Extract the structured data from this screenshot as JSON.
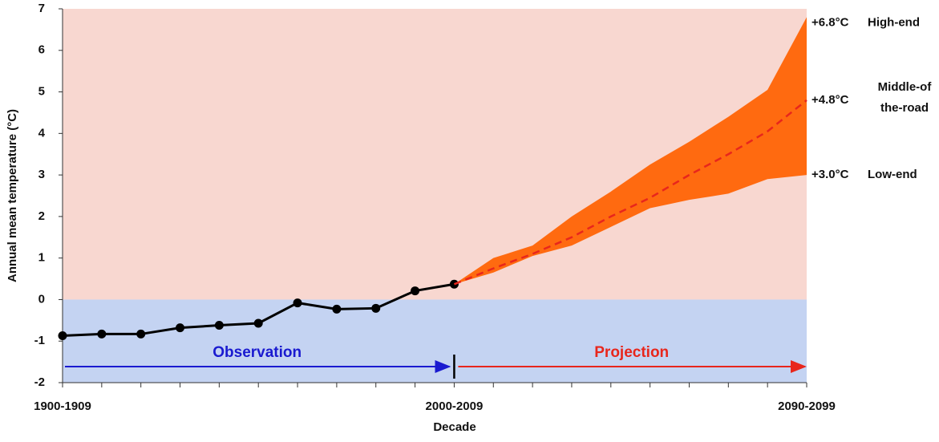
{
  "chart_data": {
    "type": "line",
    "y_label": "Annual mean temperature (°C)",
    "x_label": "Decade",
    "categories": [
      "1900-1909",
      null,
      null,
      null,
      null,
      null,
      null,
      null,
      null,
      null,
      "2000-2009",
      null,
      null,
      null,
      null,
      null,
      null,
      null,
      null,
      "2090-2099"
    ],
    "ylim": [
      -2,
      7
    ],
    "yticks": [
      -2,
      -1,
      0,
      1,
      2,
      3,
      4,
      5,
      6,
      7
    ],
    "series": [
      {
        "color": "#000000",
        "values": [
          -0.87,
          -0.83,
          -0.83,
          -0.68,
          -0.62,
          -0.57,
          -0.08,
          -0.23,
          -0.21,
          0.21,
          0.37,
          null,
          null,
          null,
          null,
          null,
          null,
          null,
          null,
          null
        ]
      },
      {
        "color": "#e8261c",
        "dashed": true,
        "values": [
          null,
          null,
          null,
          null,
          null,
          null,
          null,
          null,
          null,
          null,
          0.37,
          0.75,
          1.1,
          1.5,
          2.0,
          2.45,
          3.0,
          3.5,
          4.05,
          4.8
        ]
      }
    ],
    "band": {
      "color": "#ff6a10",
      "upper": [
        null,
        null,
        null,
        null,
        null,
        null,
        null,
        null,
        null,
        null,
        0.37,
        1.0,
        1.3,
        2.0,
        2.6,
        3.25,
        3.8,
        4.4,
        5.05,
        6.8
      ],
      "lower": [
        null,
        null,
        null,
        null,
        null,
        null,
        null,
        null,
        null,
        null,
        0.37,
        0.65,
        1.05,
        1.3,
        1.75,
        2.2,
        2.4,
        2.55,
        2.9,
        3.0
      ]
    },
    "annotations": [
      {
        "text": "+6.8°C",
        "label": [
          "High-end"
        ]
      },
      {
        "text": "+4.8°C",
        "label": [
          "Middle-of",
          "the-road"
        ]
      },
      {
        "text": "+3.0°C",
        "label": [
          "Low-end"
        ]
      }
    ],
    "periods": [
      {
        "text": "Observation",
        "color": "#1a1ad0"
      },
      {
        "text": "Projection",
        "color": "#e8261c"
      }
    ]
  }
}
